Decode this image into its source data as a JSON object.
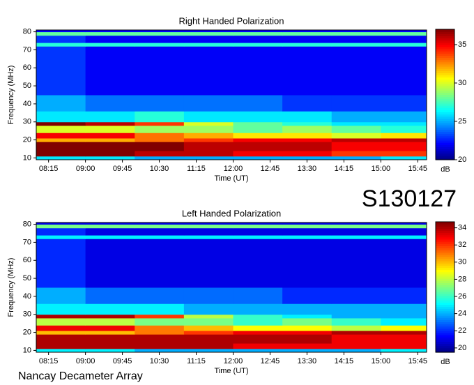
{
  "chart_data": [
    {
      "type": "heatmap",
      "title": "Right Handed Polarization",
      "xlabel": "Time (UT)",
      "ylabel": "Frequency (MHz)",
      "colormap": "jet",
      "colorbar_label": "dB",
      "annotation": "S130127",
      "xlim": [
        8.0,
        15.93
      ],
      "ylim": [
        9,
        81
      ],
      "clim": [
        20,
        37
      ],
      "xticks": [
        {
          "value": 8.25,
          "label": "08:15"
        },
        {
          "value": 9.0,
          "label": "09:00"
        },
        {
          "value": 9.75,
          "label": "09:45"
        },
        {
          "value": 10.5,
          "label": "10:30"
        },
        {
          "value": 11.25,
          "label": "11:15"
        },
        {
          "value": 12.0,
          "label": "12:00"
        },
        {
          "value": 12.75,
          "label": "12:45"
        },
        {
          "value": 13.5,
          "label": "13:30"
        },
        {
          "value": 14.25,
          "label": "14:15"
        },
        {
          "value": 15.0,
          "label": "15:00"
        },
        {
          "value": 15.75,
          "label": "15:45"
        }
      ],
      "yticks": [
        10,
        20,
        30,
        40,
        50,
        60,
        70,
        80
      ],
      "cticks": [
        20,
        25,
        30,
        35
      ],
      "xbins": [
        8.0,
        9.0,
        10.0,
        11.0,
        12.0,
        13.0,
        14.0,
        15.0,
        15.93
      ],
      "ybins": [
        9,
        11,
        14,
        19,
        21,
        24,
        28,
        30,
        36,
        45,
        72,
        74,
        78,
        80,
        81
      ],
      "z": [
        [
          26,
          26,
          25,
          25,
          25,
          25,
          25,
          26
        ],
        [
          37,
          37,
          36,
          36,
          35,
          35,
          34,
          34
        ],
        [
          37,
          37,
          37,
          36,
          36,
          36,
          35,
          35
        ],
        [
          32,
          32,
          33,
          34,
          35,
          35,
          36,
          36
        ],
        [
          35,
          35,
          33,
          32,
          31,
          31,
          30,
          31
        ],
        [
          30,
          30,
          29,
          29,
          28,
          29,
          28,
          27
        ],
        [
          37,
          36,
          34,
          30,
          28,
          27,
          26,
          26
        ],
        [
          26,
          26,
          27,
          26,
          26,
          26,
          25,
          25
        ],
        [
          25,
          24,
          24,
          24,
          24,
          23,
          23,
          23
        ],
        [
          23,
          22,
          22,
          22,
          22,
          22,
          22,
          22
        ],
        [
          27,
          27,
          27,
          27,
          27,
          27,
          27,
          27
        ],
        [
          23,
          22,
          22,
          22,
          22,
          22,
          22,
          22
        ],
        [
          28,
          28,
          28,
          28,
          28,
          28,
          28,
          28
        ],
        [
          22,
          22,
          22,
          22,
          22,
          22,
          22,
          22
        ]
      ]
    },
    {
      "type": "heatmap",
      "title": "Left Handed Polarization",
      "xlabel": "Time (UT)",
      "ylabel": "Frequency (MHz)",
      "colormap": "jet",
      "colorbar_label": "dB",
      "annotation": "Nancay Decameter Array",
      "xlim": [
        8.0,
        15.93
      ],
      "ylim": [
        9,
        81
      ],
      "clim": [
        19.5,
        34.7
      ],
      "xticks": [
        {
          "value": 8.25,
          "label": "08:15"
        },
        {
          "value": 9.0,
          "label": "09:00"
        },
        {
          "value": 9.75,
          "label": "09:45"
        },
        {
          "value": 10.5,
          "label": "10:30"
        },
        {
          "value": 11.25,
          "label": "11:15"
        },
        {
          "value": 12.0,
          "label": "12:00"
        },
        {
          "value": 12.75,
          "label": "12:45"
        },
        {
          "value": 13.5,
          "label": "13:30"
        },
        {
          "value": 14.25,
          "label": "14:15"
        },
        {
          "value": 15.0,
          "label": "15:00"
        },
        {
          "value": 15.75,
          "label": "15:45"
        }
      ],
      "yticks": [
        10,
        20,
        30,
        40,
        50,
        60,
        70,
        80
      ],
      "cticks": [
        20,
        22,
        24,
        26,
        28,
        30,
        32,
        34
      ],
      "xbins": [
        8.0,
        9.0,
        10.0,
        11.0,
        12.0,
        13.0,
        14.0,
        15.0,
        15.93
      ],
      "ybins": [
        9,
        11,
        14,
        19,
        21,
        24,
        28,
        30,
        36,
        45,
        72,
        74,
        78,
        80,
        81
      ],
      "z": [
        [
          25,
          25,
          24,
          24,
          24,
          24,
          24,
          25
        ],
        [
          34,
          34,
          34,
          34,
          33,
          33,
          33,
          33
        ],
        [
          34,
          34,
          34,
          34,
          34,
          34,
          33,
          33
        ],
        [
          30,
          30,
          31,
          32,
          33,
          33,
          34,
          34
        ],
        [
          33,
          33,
          31,
          30,
          29,
          29,
          28,
          29
        ],
        [
          28,
          28,
          27,
          27,
          26,
          27,
          26,
          25
        ],
        [
          34,
          34,
          32,
          28,
          26,
          25,
          24,
          24
        ],
        [
          25,
          25,
          25,
          24,
          24,
          24,
          24,
          24
        ],
        [
          24,
          23,
          23,
          23,
          23,
          22,
          22,
          22
        ],
        [
          22,
          21,
          21,
          21,
          21,
          21,
          21,
          21
        ],
        [
          25,
          25,
          25,
          25,
          25,
          25,
          25,
          25
        ],
        [
          22,
          21,
          21,
          21,
          21,
          21,
          21,
          21
        ],
        [
          27,
          27,
          27,
          27,
          27,
          27,
          27,
          27
        ],
        [
          21,
          21,
          21,
          21,
          21,
          21,
          21,
          21
        ]
      ]
    }
  ]
}
